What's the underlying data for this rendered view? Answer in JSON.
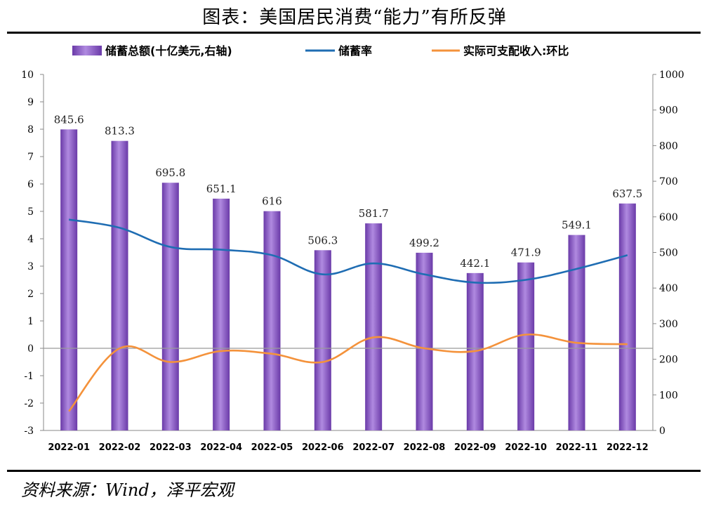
{
  "title": "图表：美国居民消费“能力”有所反弹",
  "source": "资料来源：Wind，泽平宏观",
  "chart_data": {
    "type": "bar",
    "categories": [
      "2022-01",
      "2022-02",
      "2022-03",
      "2022-04",
      "2022-05",
      "2022-06",
      "2022-07",
      "2022-08",
      "2022-09",
      "2022-10",
      "2022-11",
      "2022-12"
    ],
    "left_axis": {
      "ylim": [
        -3,
        10
      ],
      "ticks": [
        -3,
        -2,
        -1,
        0,
        1,
        2,
        3,
        4,
        5,
        6,
        7,
        8,
        9,
        10
      ]
    },
    "right_axis": {
      "ylim": [
        0,
        1000
      ],
      "ticks": [
        0,
        100,
        200,
        300,
        400,
        500,
        600,
        700,
        800,
        900,
        1000
      ]
    },
    "grid": false,
    "legend_position": "top",
    "series": [
      {
        "name": "储蓄总额(十亿美元,右轴)",
        "type": "bar",
        "axis": "right",
        "color": "#8e5cc7",
        "values": [
          845.6,
          813.3,
          695.8,
          651.1,
          616,
          506.3,
          581.7,
          499.2,
          442.1,
          471.9,
          549.1,
          637.5
        ],
        "labels": [
          "845.6",
          "813.3",
          "695.8",
          "651.1",
          "616",
          "506.3",
          "581.7",
          "499.2",
          "442.1",
          "471.9",
          "549.1",
          "637.5"
        ]
      },
      {
        "name": "储蓄率",
        "type": "line",
        "axis": "left",
        "color": "#1f6db3",
        "values": [
          4.7,
          4.4,
          3.7,
          3.6,
          3.4,
          2.7,
          3.1,
          2.7,
          2.4,
          2.5,
          2.9,
          3.4
        ]
      },
      {
        "name": "实际可支配收入:环比",
        "type": "line",
        "axis": "left",
        "color": "#f4923b",
        "values": [
          -2.3,
          0.0,
          -0.5,
          -0.1,
          -0.2,
          -0.5,
          0.4,
          0.0,
          -0.1,
          0.5,
          0.2,
          0.15
        ]
      }
    ]
  }
}
